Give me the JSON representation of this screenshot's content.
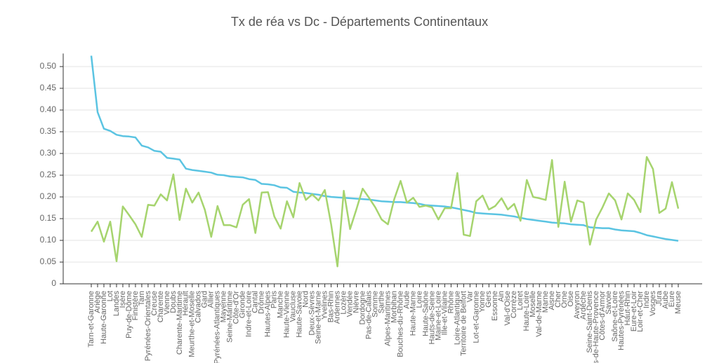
{
  "chart_data": {
    "type": "line",
    "title": "Tx de réa vs Dc - Départements Continentaux",
    "categories": [
      "Tarn-et-Garonne",
      "Ariège",
      "Haute-Garonne",
      "Lot",
      "Landes",
      "Isère",
      "Puy-de-Dôme",
      "Finistère",
      "Tarn",
      "Pyrénées-Orientales",
      "Creuse",
      "Charente",
      "Vienne",
      "Doubs",
      "Charente-Maritime",
      "Hérault",
      "Meurthe-et-Moselle",
      "Calvados",
      "Gard",
      "Allier",
      "Pyrénées-Atlantiques",
      "Mayenne",
      "Seine-Maritime",
      "Côte-d'Or",
      "Gironde",
      "Indre-et-Loire",
      "Cantal",
      "Drôme",
      "Hautes-Alpes",
      "Paris",
      "Manche",
      "Haute-Vienne",
      "Vaucluse",
      "Haute-Savoie",
      "Nord",
      "Deux-Sèvres",
      "Seine-et-Marne",
      "Yvelines",
      "Bas-Rhin",
      "Ardennes",
      "Lozère",
      "Vendée",
      "Nièvre",
      "Dordogne",
      "Pas-de-Calais",
      "Somme",
      "Sarthe",
      "Alpes-Maritimes",
      "Morbihan",
      "Bouches-du-Rhône",
      "Aude",
      "Haute-Marne",
      "Loire",
      "Haute-Saône",
      "Hauts-de-Seine",
      "Maine-et-Loire",
      "Ille-et-Vilaine",
      "Rhône",
      "Loire-Atlantique",
      "Territoire de Belfort",
      "Var",
      "Lot-et-Garonne",
      "Yonne",
      "Gers",
      "Essonne",
      "Ain",
      "Val-d'Oise",
      "Corrèze",
      "Loiret",
      "Haute-Loire",
      "Moselle",
      "Val-de-Marne",
      "Marne",
      "Aisne",
      "Cher",
      "Orne",
      "Oise",
      "Aveyron",
      "Ardèche",
      "Seine-Saint-Denis",
      "Alpes-de-Haute-Provence",
      "Côtes-d'Armor",
      "Savoie",
      "Saône-et-Loire",
      "Hautes-Pyrénées",
      "Haut-Rhin",
      "Eure-et-Loir",
      "Loir-et-Cher",
      "Indre",
      "Vosges",
      "Jura",
      "Aube",
      "Eure",
      "Meuse"
    ],
    "series": [
      {
        "color": "#5bc4e2",
        "values": [
          0.525,
          0.395,
          0.357,
          0.352,
          0.343,
          0.34,
          0.339,
          0.337,
          0.318,
          0.314,
          0.306,
          0.304,
          0.29,
          0.288,
          0.286,
          0.265,
          0.262,
          0.26,
          0.258,
          0.256,
          0.251,
          0.25,
          0.247,
          0.246,
          0.245,
          0.241,
          0.239,
          0.23,
          0.229,
          0.227,
          0.222,
          0.221,
          0.212,
          0.21,
          0.209,
          0.207,
          0.205,
          0.202,
          0.2,
          0.199,
          0.198,
          0.197,
          0.196,
          0.195,
          0.194,
          0.192,
          0.19,
          0.189,
          0.188,
          0.188,
          0.187,
          0.186,
          0.184,
          0.181,
          0.18,
          0.179,
          0.178,
          0.176,
          0.173,
          0.17,
          0.167,
          0.163,
          0.162,
          0.161,
          0.16,
          0.159,
          0.157,
          0.155,
          0.152,
          0.149,
          0.147,
          0.145,
          0.143,
          0.141,
          0.14,
          0.139,
          0.137,
          0.136,
          0.135,
          0.13,
          0.129,
          0.128,
          0.128,
          0.125,
          0.123,
          0.122,
          0.121,
          0.117,
          0.112,
          0.109,
          0.106,
          0.103,
          0.101,
          0.099
        ]
      },
      {
        "color": "#a6d46e",
        "values": [
          0.12,
          0.143,
          0.097,
          0.143,
          0.052,
          0.178,
          0.158,
          0.137,
          0.108,
          0.182,
          0.18,
          0.206,
          0.192,
          0.252,
          0.147,
          0.219,
          0.187,
          0.21,
          0.17,
          0.108,
          0.179,
          0.135,
          0.135,
          0.13,
          0.182,
          0.195,
          0.117,
          0.21,
          0.211,
          0.155,
          0.127,
          0.19,
          0.153,
          0.232,
          0.193,
          0.206,
          0.192,
          0.216,
          0.137,
          0.04,
          0.214,
          0.126,
          0.171,
          0.219,
          0.198,
          0.176,
          0.148,
          0.137,
          0.195,
          0.237,
          0.187,
          0.198,
          0.177,
          0.18,
          0.176,
          0.148,
          0.174,
          0.174,
          0.255,
          0.113,
          0.11,
          0.19,
          0.203,
          0.171,
          0.179,
          0.197,
          0.171,
          0.184,
          0.145,
          0.239,
          0.2,
          0.197,
          0.193,
          0.285,
          0.131,
          0.235,
          0.143,
          0.192,
          0.187,
          0.09,
          0.148,
          0.176,
          0.208,
          0.192,
          0.148,
          0.208,
          0.193,
          0.165,
          0.292,
          0.264,
          0.163,
          0.173,
          0.234,
          0.173
        ]
      }
    ],
    "ylim": [
      0,
      0.53
    ],
    "yticks": [
      0,
      0.05,
      {
        "value": 0.1,
        "label": "0.10"
      },
      0.15,
      {
        "value": 0.2,
        "label": "0.20"
      },
      0.25,
      {
        "value": 0.3,
        "label": "0.30"
      },
      0.35,
      {
        "value": 0.4,
        "label": "0.40"
      },
      0.45,
      {
        "value": 0.5,
        "label": "0.50"
      }
    ],
    "grid": true
  }
}
